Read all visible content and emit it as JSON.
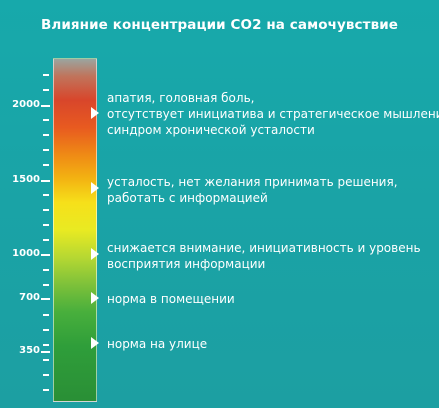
{
  "title": "Влияние концентрации CO2 на самочувствие",
  "scale": {
    "labels": [
      {
        "id": "2000",
        "text": "2000"
      },
      {
        "id": "1500",
        "text": "1500"
      },
      {
        "id": "1000",
        "text": "1000"
      },
      {
        "id": "700",
        "text": "700"
      },
      {
        "id": "350",
        "text": "350"
      }
    ]
  },
  "levels": [
    {
      "level": "2000",
      "lines": [
        "апатия, головная боль,",
        "отсутствует инициатива и стратегическое мышление,",
        "синдром хронической усталости"
      ]
    },
    {
      "level": "1500",
      "lines": [
        "усталость, нет желания принимать решения,",
        "работать с информацией"
      ]
    },
    {
      "level": "1000",
      "lines": [
        "снижается внимание, инициативность и уровень",
        "восприятия информации"
      ]
    },
    {
      "level": "700",
      "lines": [
        "норма в помещении"
      ]
    },
    {
      "level": "350",
      "lines": [
        "норма на улице"
      ]
    }
  ],
  "colors": {
    "background": "#1aa5a8",
    "high": "#d8462b",
    "medium": "#f6e01a",
    "low": "#2a8f36"
  }
}
